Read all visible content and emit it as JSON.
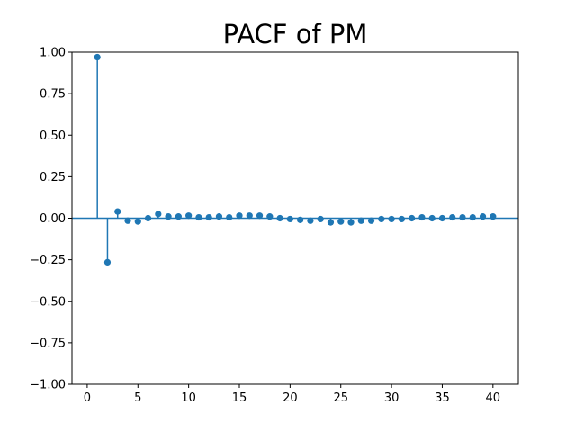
{
  "chart_data": {
    "type": "stem",
    "title": "PACF of PM",
    "xlabel": "",
    "ylabel": "",
    "xlim": [
      -1.5,
      42.5
    ],
    "ylim": [
      -1.0,
      1.0
    ],
    "xticks": [
      0,
      5,
      10,
      15,
      20,
      25,
      30,
      35,
      40
    ],
    "yticks": [
      -1.0,
      -0.75,
      -0.5,
      -0.25,
      0.0,
      0.25,
      0.5,
      0.75,
      1.0
    ],
    "ytick_labels": [
      "−1.00",
      "−0.75",
      "−0.50",
      "−0.25",
      "0.00",
      "0.25",
      "0.50",
      "0.75",
      "1.00"
    ],
    "xtick_labels": [
      "0",
      "5",
      "10",
      "15",
      "20",
      "25",
      "30",
      "35",
      "40"
    ],
    "grid": false,
    "color": "#1f77b4",
    "x": [
      1,
      2,
      3,
      4,
      5,
      6,
      7,
      8,
      9,
      10,
      11,
      12,
      13,
      14,
      15,
      16,
      17,
      18,
      19,
      20,
      21,
      22,
      23,
      24,
      25,
      26,
      27,
      28,
      29,
      30,
      31,
      32,
      33,
      34,
      35,
      36,
      37,
      38,
      39,
      40
    ],
    "values": [
      0.97,
      -0.265,
      0.04,
      -0.015,
      -0.02,
      0.0,
      0.025,
      0.01,
      0.01,
      0.015,
      0.005,
      0.005,
      0.01,
      0.005,
      0.015,
      0.015,
      0.015,
      0.01,
      0.0,
      -0.005,
      -0.01,
      -0.015,
      -0.005,
      -0.025,
      -0.02,
      -0.025,
      -0.015,
      -0.015,
      -0.005,
      -0.005,
      -0.005,
      0.0,
      0.005,
      0.0,
      0.0,
      0.005,
      0.005,
      0.005,
      0.01,
      0.01
    ]
  }
}
